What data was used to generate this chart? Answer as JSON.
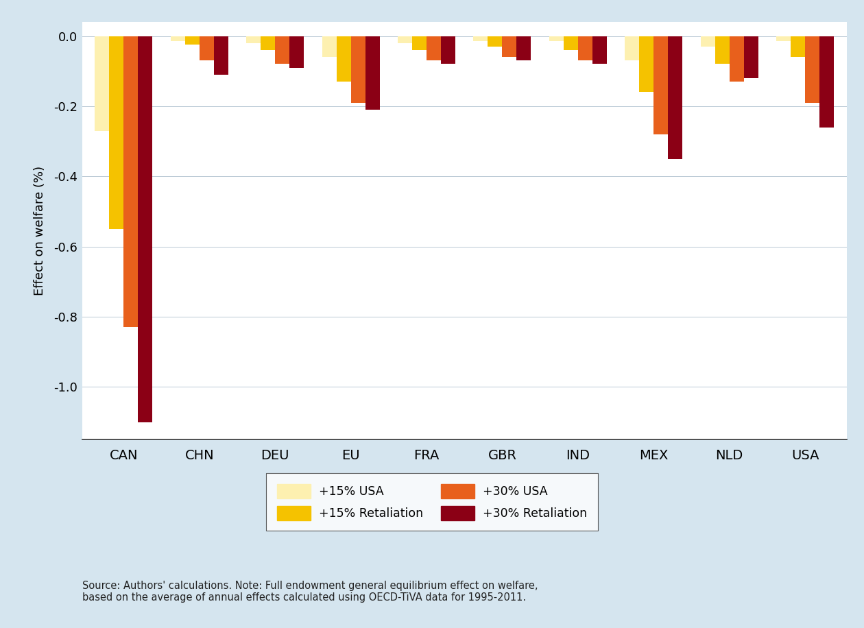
{
  "categories": [
    "CAN",
    "CHN",
    "DEU",
    "EU",
    "FRA",
    "GBR",
    "IND",
    "MEX",
    "NLD",
    "USA"
  ],
  "series": {
    "15pct_usa": [
      -0.27,
      -0.015,
      -0.02,
      -0.06,
      -0.02,
      -0.015,
      -0.015,
      -0.07,
      -0.03,
      -0.015
    ],
    "15pct_retaliation": [
      -0.55,
      -0.025,
      -0.04,
      -0.13,
      -0.04,
      -0.03,
      -0.04,
      -0.16,
      -0.08,
      -0.06
    ],
    "30pct_usa": [
      -0.83,
      -0.07,
      -0.08,
      -0.19,
      -0.07,
      -0.06,
      -0.07,
      -0.28,
      -0.13,
      -0.19
    ],
    "30pct_retaliation": [
      -1.1,
      -0.11,
      -0.09,
      -0.21,
      -0.08,
      -0.07,
      -0.08,
      -0.35,
      -0.12,
      -0.26
    ]
  },
  "colors": {
    "15pct_usa": "#FDF0B0",
    "15pct_retaliation": "#F5C200",
    "30pct_usa": "#E8601C",
    "30pct_retaliation": "#8B0015"
  },
  "legend_labels": {
    "15pct_usa": "+15% USA",
    "15pct_retaliation": "+15% Retaliation",
    "30pct_usa": "+30% USA",
    "30pct_retaliation": "+30% Retaliation"
  },
  "ylabel": "Effect on welfare (%)",
  "ylim": [
    -1.15,
    0.04
  ],
  "yticks": [
    0.0,
    -0.2,
    -0.4,
    -0.6,
    -0.8,
    -1.0
  ],
  "background_color": "#d5e5ef",
  "plot_background": "#ffffff",
  "source_text": "Source: Authors' calculations. Note: Full endowment general equilibrium effect on welfare,\nbased on the average of annual effects calculated using OECD-TiVA data for 1995-2011.",
  "bar_width": 0.19,
  "figsize": [
    12.6,
    9.16
  ],
  "dpi": 100
}
